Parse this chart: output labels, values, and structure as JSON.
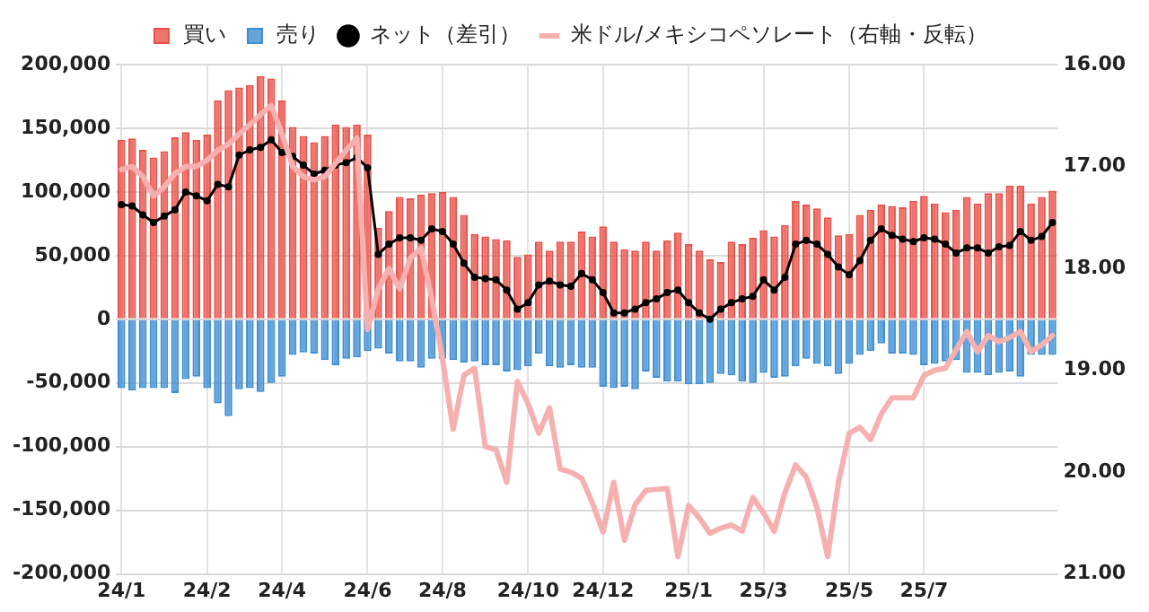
{
  "chart_data": {
    "type": "bar",
    "stacked": true,
    "legend": "top",
    "grid": true,
    "categories": [
      "24/1",
      null,
      null,
      null,
      null,
      null,
      null,
      null,
      "24/2",
      null,
      null,
      null,
      null,
      null,
      null,
      "24/4",
      null,
      null,
      null,
      null,
      null,
      null,
      null,
      "24/6",
      null,
      null,
      null,
      null,
      null,
      null,
      "24/8",
      null,
      null,
      null,
      null,
      null,
      null,
      null,
      "24/10",
      null,
      null,
      null,
      null,
      null,
      null,
      "24/12",
      null,
      null,
      null,
      null,
      null,
      null,
      null,
      "25/1",
      null,
      null,
      null,
      null,
      null,
      null,
      "25/3",
      null,
      null,
      null,
      null,
      null,
      null,
      null,
      "25/5",
      null,
      null,
      null,
      null,
      null,
      null,
      "25/7",
      null,
      null,
      null,
      null,
      null,
      null,
      null,
      null,
      null,
      null,
      null,
      null
    ],
    "ylim": [
      -200000,
      200000
    ],
    "yticks": [
      {
        "value": -200000,
        "label": "-200,000"
      },
      {
        "value": -150000,
        "label": "-150,000"
      },
      {
        "value": -100000,
        "label": "-100,000"
      },
      {
        "value": -50000,
        "label": "-50,000"
      },
      0,
      {
        "value": 50000,
        "label": "50,000"
      },
      {
        "value": 100000,
        "label": "100,000"
      },
      {
        "value": 150000,
        "label": "150,000"
      },
      {
        "value": 200000,
        "label": "200,000"
      }
    ],
    "y2lim": [
      21,
      16
    ],
    "y2ticks": [
      {
        "value": 16,
        "label": "16.00"
      },
      {
        "value": 17,
        "label": "17.00"
      },
      {
        "value": 18,
        "label": "18.00"
      },
      {
        "value": 19,
        "label": "19.00"
      },
      {
        "value": 20,
        "label": "20.00"
      },
      {
        "value": 21,
        "label": "21.00"
      }
    ],
    "series": [
      {
        "name": "買い",
        "color": "#e8524a",
        "values": [
          141000,
          142000,
          133000,
          127000,
          132000,
          143000,
          147000,
          141000,
          145000,
          172000,
          180000,
          182000,
          184000,
          191000,
          189000,
          172000,
          151000,
          144000,
          139000,
          144000,
          153000,
          151000,
          153000,
          145000,
          72000,
          85000,
          96000,
          95000,
          98000,
          99000,
          100000,
          96000,
          82000,
          67000,
          65000,
          63000,
          62000,
          49000,
          51000,
          61000,
          54000,
          61000,
          61000,
          69000,
          65000,
          73000,
          61000,
          55000,
          54000,
          61000,
          54000,
          62000,
          68000,
          59000,
          54000,
          47000,
          45000,
          61000,
          59000,
          64000,
          70000,
          65000,
          74000,
          93000,
          90000,
          87000,
          80000,
          66000,
          67000,
          82000,
          86000,
          90000,
          89000,
          88000,
          93000,
          97000,
          91000,
          84000,
          86000,
          96000,
          91000,
          99000,
          99000,
          105000,
          105000,
          91000,
          96000,
          101000
        ]
      },
      {
        "name": "売り",
        "color": "#3f8fd2",
        "values": [
          -54000,
          -56000,
          -54000,
          -54000,
          -54000,
          -58000,
          -47000,
          -45000,
          -54000,
          -66000,
          -76000,
          -55000,
          -54000,
          -57000,
          -50000,
          -45000,
          -28000,
          -26000,
          -27000,
          -32000,
          -36000,
          -31000,
          -30000,
          -25000,
          -23000,
          -27000,
          -33000,
          -33000,
          -38000,
          -31000,
          -31000,
          -32000,
          -34000,
          -33000,
          -36000,
          -36000,
          -41000,
          -40000,
          -37000,
          -27000,
          -37000,
          -38000,
          -36000,
          -38000,
          -38000,
          -53000,
          -54000,
          -53000,
          -55000,
          -41000,
          -46000,
          -49000,
          -49000,
          -51000,
          -51000,
          -50000,
          -43000,
          -44000,
          -49000,
          -50000,
          -42000,
          -46000,
          -45000,
          -37000,
          -31000,
          -35000,
          -37000,
          -43000,
          -35000,
          -28000,
          -25000,
          -19000,
          -27000,
          -27000,
          -28000,
          -36000,
          -35000,
          -33000,
          -32000,
          -42000,
          -42000,
          -44000,
          -42000,
          -41000,
          -45000,
          -28000,
          -28000,
          -28000
        ]
      },
      {
        "name": "ネット（差引）",
        "type": "line",
        "marker": "circle",
        "color": "#000000",
        "values": [
          90000,
          89000,
          82000,
          76000,
          81000,
          86000,
          100000,
          97000,
          93000,
          106000,
          104000,
          129000,
          133000,
          135000,
          141000,
          131000,
          128000,
          121000,
          114000,
          117000,
          121000,
          123000,
          127000,
          119000,
          51000,
          59000,
          64000,
          64000,
          62000,
          71000,
          69000,
          59000,
          44000,
          33000,
          32000,
          31000,
          23000,
          8000,
          13000,
          27000,
          30000,
          27000,
          26000,
          36000,
          31000,
          21000,
          5000,
          5000,
          8000,
          13000,
          16000,
          21000,
          23000,
          13000,
          5000,
          0,
          8000,
          13000,
          16000,
          18000,
          31000,
          23000,
          33000,
          59000,
          62000,
          59000,
          51000,
          41000,
          35000,
          46000,
          62000,
          71000,
          66000,
          63000,
          61000,
          64000,
          63000,
          59000,
          52000,
          56000,
          56000,
          52000,
          57000,
          58000,
          69000,
          62000,
          65000,
          76000
        ]
      },
      {
        "name": "米ドル/メキシコペソレート（右軸・反転）",
        "type": "line",
        "axis": "y2",
        "marker": "none",
        "color": "#f7b0b0",
        "values": [
          17.03,
          17.0,
          17.1,
          17.29,
          17.2,
          17.07,
          17.0,
          17.0,
          16.94,
          16.84,
          16.78,
          16.68,
          16.59,
          16.49,
          16.4,
          16.68,
          17.0,
          17.1,
          17.13,
          17.1,
          16.97,
          16.84,
          16.72,
          18.6,
          18.2,
          18.0,
          18.2,
          17.9,
          17.8,
          18.3,
          18.89,
          19.58,
          19.05,
          18.98,
          19.75,
          19.78,
          20.1,
          19.11,
          19.33,
          19.62,
          19.37,
          19.97,
          20.0,
          20.06,
          20.3,
          20.59,
          20.1,
          20.67,
          20.32,
          20.18,
          20.17,
          20.16,
          20.83,
          20.33,
          20.45,
          20.6,
          20.55,
          20.52,
          20.58,
          20.25,
          20.4,
          20.58,
          20.2,
          19.93,
          20.05,
          20.35,
          20.83,
          20.1,
          19.62,
          19.56,
          19.68,
          19.43,
          19.27,
          19.27,
          19.27,
          19.05,
          19.0,
          18.98,
          18.8,
          18.62,
          18.82,
          18.66,
          18.72,
          18.68,
          18.62,
          18.82,
          18.75,
          18.66
        ]
      }
    ]
  }
}
